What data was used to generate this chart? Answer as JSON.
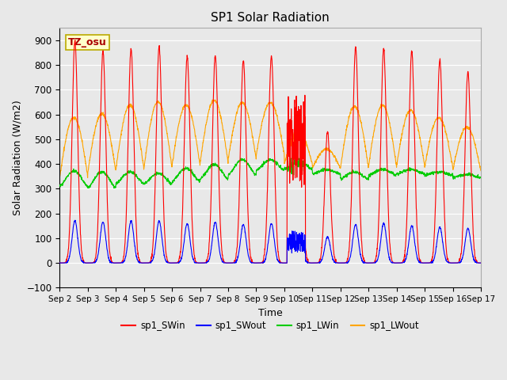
{
  "title": "SP1 Solar Radiation",
  "xlabel": "Time",
  "ylabel": "Solar Radiation (W/m2)",
  "ylim": [
    -100,
    950
  ],
  "xlim": [
    0,
    15
  ],
  "xtick_labels": [
    "Sep 2",
    "Sep 3",
    "Sep 4",
    "Sep 5",
    "Sep 6",
    "Sep 7",
    "Sep 8",
    "Sep 9",
    "Sep 10",
    "Sep 11",
    "Sep 12",
    "Sep 13",
    "Sep 14",
    "Sep 15",
    "Sep 16",
    "Sep 17"
  ],
  "colors": {
    "SWin": "#FF0000",
    "SWout": "#0000FF",
    "LWin": "#00CC00",
    "LWout": "#FFA500"
  },
  "annotation_text": "TZ_osu",
  "annotation_color": "#AA0000",
  "annotation_bg": "#FFFFCC",
  "annotation_border": "#BBAA00",
  "plot_bg": "#E8E8E8",
  "fig_bg": "#E8E8E8",
  "peak_SWin": [
    900,
    855,
    865,
    875,
    835,
    840,
    820,
    835,
    680,
    530,
    870,
    865,
    855,
    820,
    775
  ],
  "peak_SWout": [
    170,
    165,
    170,
    170,
    160,
    165,
    155,
    160,
    115,
    105,
    155,
    160,
    150,
    145,
    140
  ],
  "LWin_base": [
    310,
    305,
    320,
    320,
    330,
    340,
    355,
    375,
    380,
    360,
    340,
    355,
    360,
    355,
    345
  ],
  "LWin_peak": [
    372,
    368,
    368,
    362,
    382,
    398,
    418,
    418,
    410,
    378,
    368,
    378,
    378,
    368,
    358
  ],
  "LWout_base": [
    348,
    368,
    378,
    383,
    393,
    403,
    418,
    438,
    400,
    382,
    383,
    388,
    393,
    388,
    373
  ],
  "LWout_peak": [
    588,
    603,
    638,
    653,
    638,
    658,
    648,
    648,
    530,
    460,
    633,
    638,
    618,
    588,
    548
  ]
}
